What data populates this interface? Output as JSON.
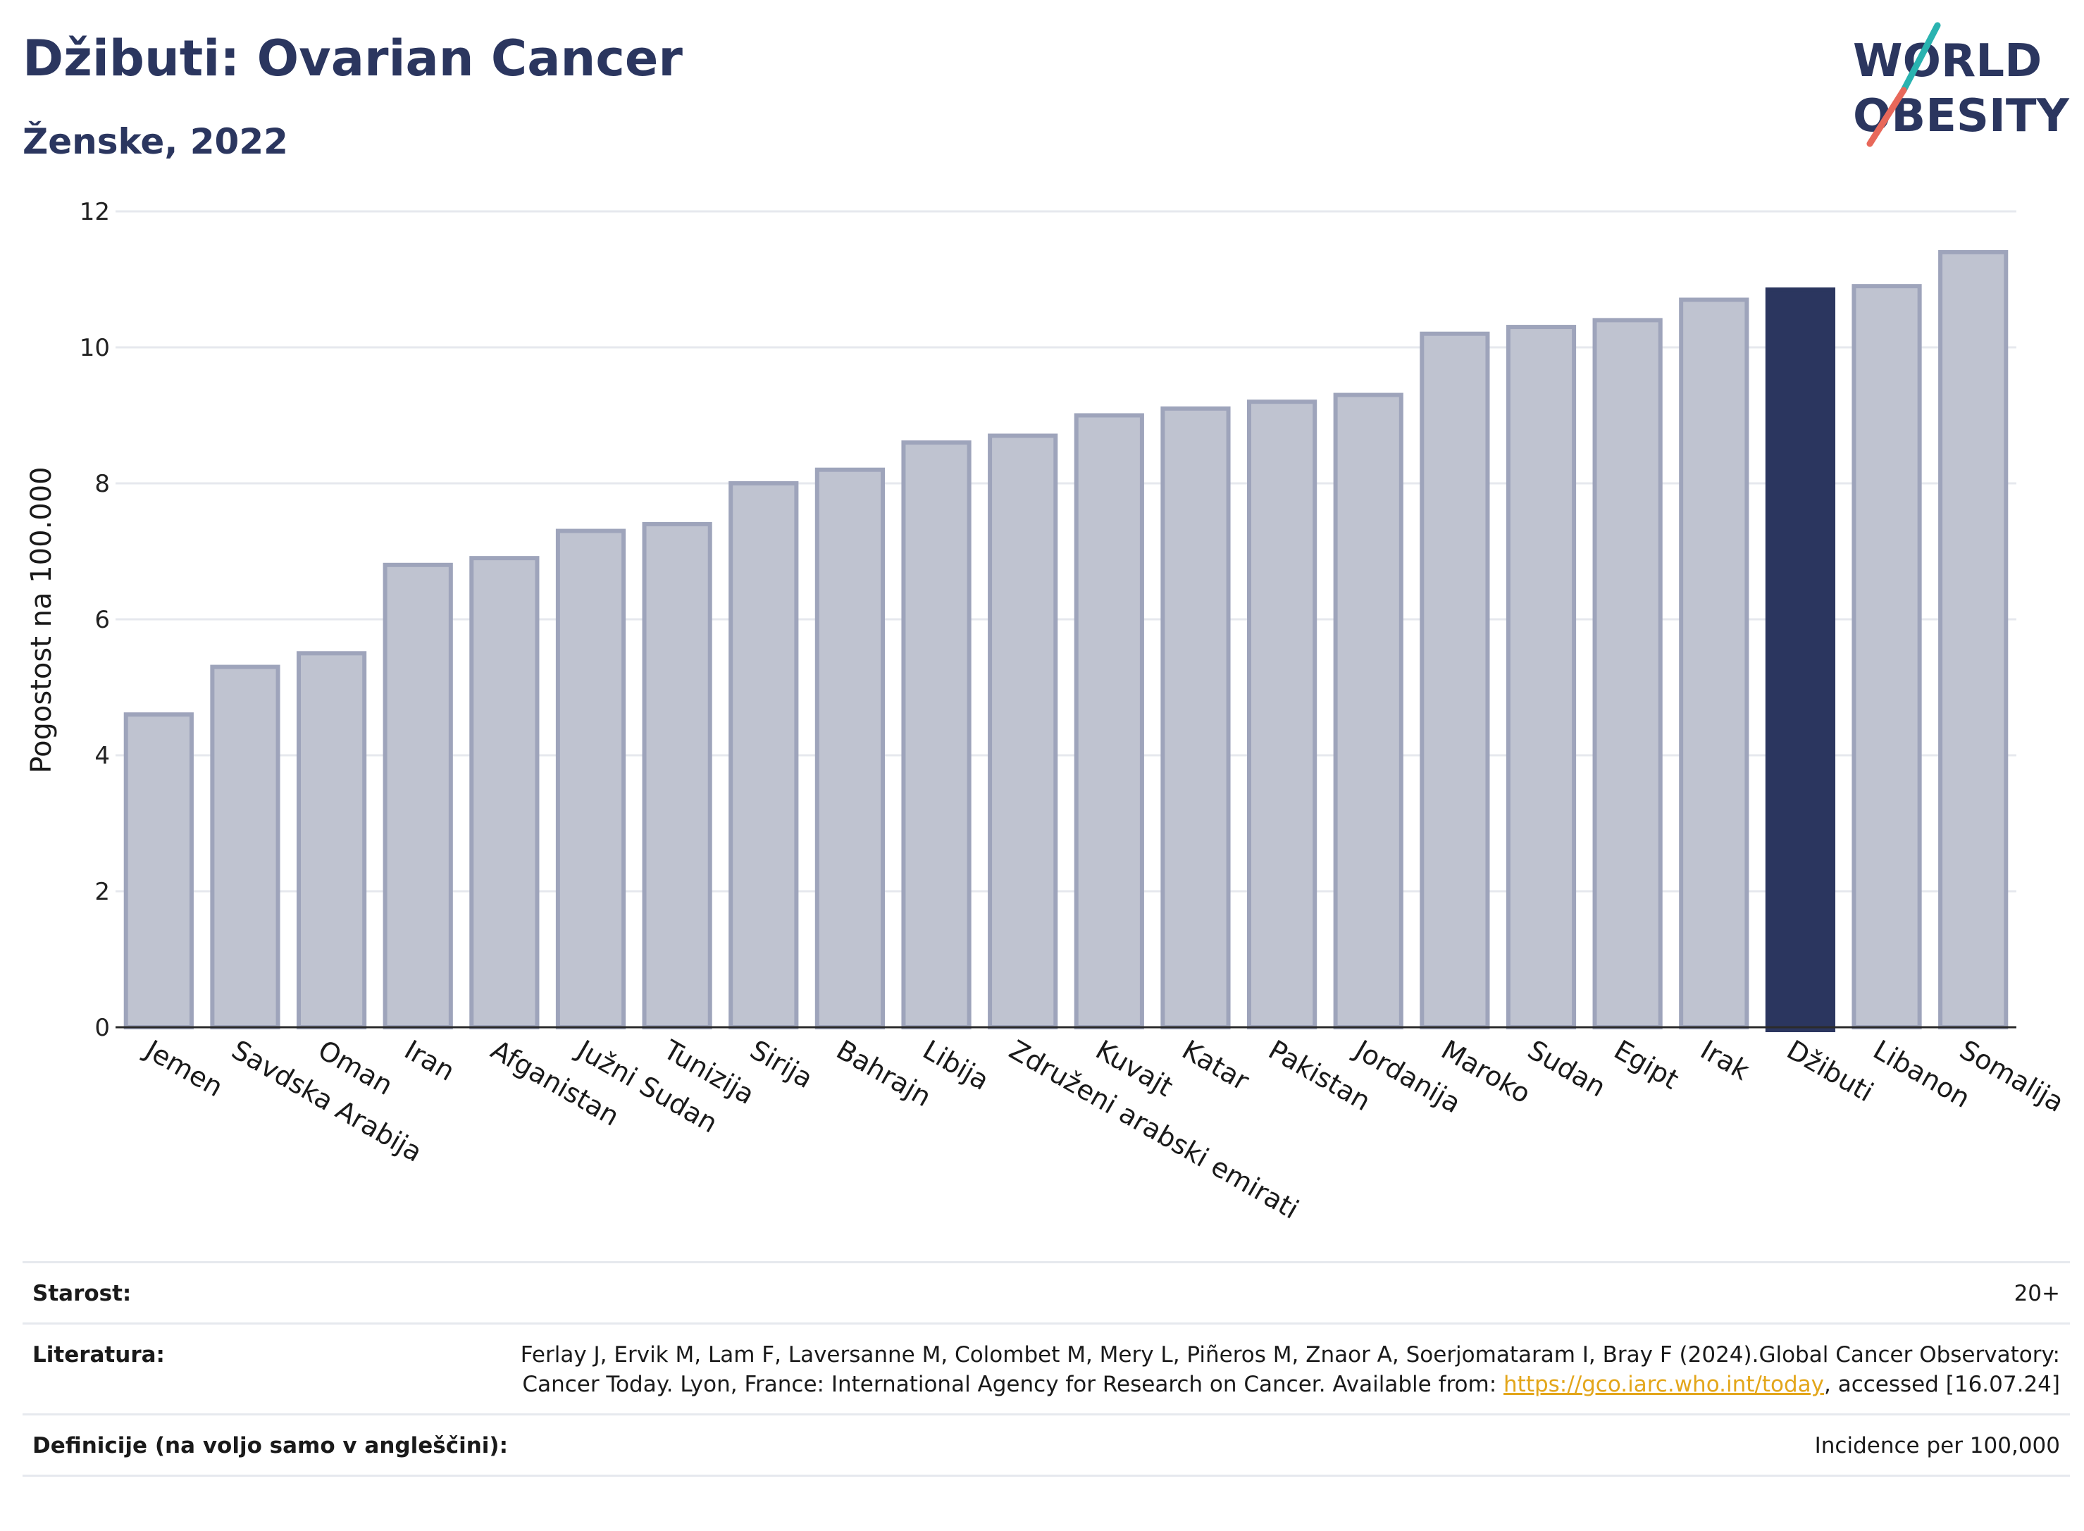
{
  "header": {
    "title": "Džibuti: Ovarian Cancer",
    "subtitle": "Ženske, 2022"
  },
  "logo": {
    "line1": "WORLD",
    "line2": "OBESITY",
    "colors": {
      "text": "#2b365f",
      "slash_top": "#2ab3b0",
      "slash_bottom": "#e8685a"
    }
  },
  "chart_data": {
    "type": "bar",
    "ylabel": "Pogostost na 100.000",
    "ylim": [
      0,
      12
    ],
    "yticks": [
      0,
      2,
      4,
      6,
      8,
      10,
      12
    ],
    "grid": true,
    "highlight": "Džibuti",
    "colors": {
      "bar": "#bfc3d0",
      "bar_edge": "#9ea4bb",
      "highlight": "#2b365f"
    },
    "categories": [
      "Jemen",
      "Savdska Arabija",
      "Oman",
      "Iran",
      "Afganistan",
      "Južni Sudan",
      "Tunizija",
      "Sirija",
      "Bahrajn",
      "Libija",
      "Združeni arabski emirati",
      "Kuvajt",
      "Katar",
      "Pakistan",
      "Jordanija",
      "Maroko",
      "Sudan",
      "Egipt",
      "Irak",
      "Džibuti",
      "Libanon",
      "Somalija"
    ],
    "values": [
      4.6,
      5.3,
      5.5,
      6.8,
      6.9,
      7.3,
      7.4,
      8.0,
      8.2,
      8.6,
      8.7,
      9.0,
      9.1,
      9.2,
      9.3,
      10.2,
      10.3,
      10.4,
      10.7,
      10.85,
      10.9,
      11.4
    ]
  },
  "meta": {
    "age_label": "Starost:",
    "age_value": "20+",
    "ref_label": "Literatura:",
    "ref_text_1": "Ferlay J, Ervik M, Lam F, Laversanne M, Colombet M, Mery L, Piñeros M, Znaor A, Soerjomataram I, Bray F (2024).Global Cancer Observatory: Cancer Today. Lyon, France: International Agency for Research on Cancer. Available from: ",
    "ref_link": "https://gco.iarc.who.int/today",
    "ref_text_2": ", accessed [16.07.24]",
    "def_label": "Definicije (na voljo samo v angleščini):",
    "def_value": "Incidence per 100,000"
  }
}
